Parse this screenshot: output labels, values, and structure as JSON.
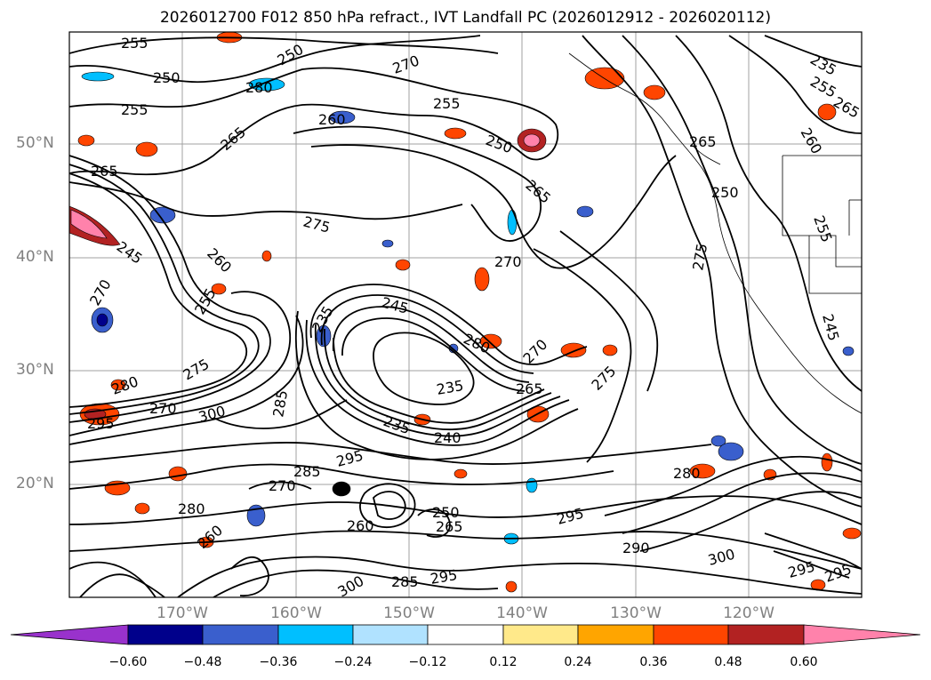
{
  "title": "2026012700 F012 850 hPa refract., IVT Landfall PC (2026012912 - 2026020112)",
  "lat_labels": [
    "50°N",
    "40°N",
    "30°N",
    "20°N"
  ],
  "lon_labels": [
    "170°W",
    "160°W",
    "150°W",
    "140°W",
    "130°W",
    "120°W"
  ],
  "colorbar": {
    "labels": [
      "−0.60",
      "−0.48",
      "−0.36",
      "−0.24",
      "−0.12",
      "0.12",
      "0.24",
      "0.36",
      "0.48",
      "0.60"
    ],
    "colors": [
      "#9932cc",
      "#00008b",
      "#3a5fcd",
      "#00bfff",
      "#b0e2ff",
      "#ffffff",
      "#ffe98a",
      "#ffa500",
      "#ff4500",
      "#b22222",
      "#ff82ab"
    ]
  },
  "contour_labels": [
    "255",
    "250",
    "255",
    "265",
    "265",
    "245",
    "260",
    "270",
    "255",
    "280",
    "275",
    "270",
    "295",
    "300",
    "250",
    "280",
    "270",
    "275",
    "260",
    "255",
    "250",
    "265",
    "270",
    "245",
    "235",
    "235",
    "235",
    "240",
    "280",
    "265",
    "275",
    "270",
    "265",
    "260",
    "275",
    "245",
    "250",
    "255",
    "235",
    "285",
    "295",
    "260",
    "265",
    "285",
    "295",
    "300",
    "290",
    "295",
    "300",
    "295",
    "255",
    "265",
    "250",
    "280",
    "280",
    "260",
    "285",
    "295",
    "270"
  ],
  "gridlines": "on"
}
